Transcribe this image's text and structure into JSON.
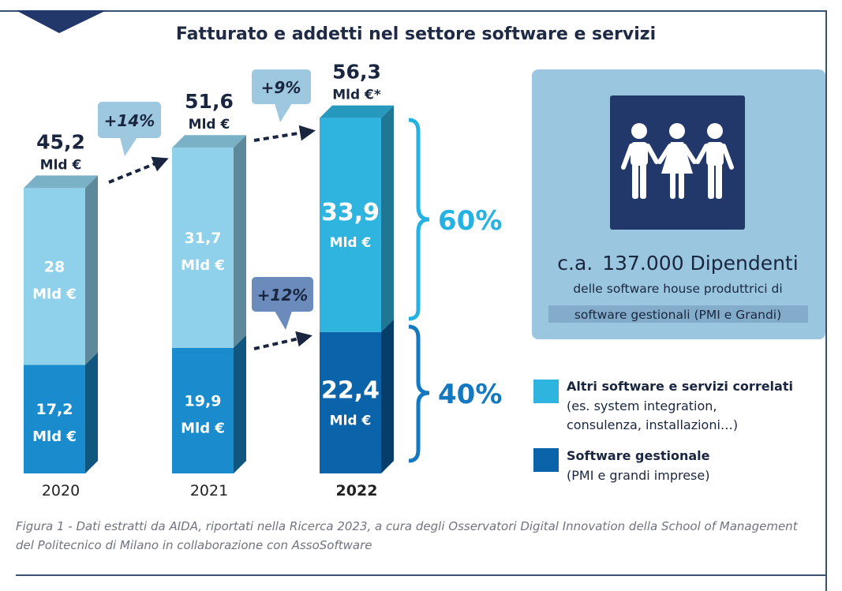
{
  "title": "Fatturato e addetti nel settore software e servizi",
  "colors": {
    "other_light": "#8fd0ea",
    "other_dark": "#2fb4df",
    "gestionale_light": "#1a8ccd",
    "gestionale_dark": "#0b63aa",
    "pct_other": "#25b2e3",
    "pct_gestionale": "#1478c0",
    "employees_box": "#9ac6df",
    "icon_box": "#22386b"
  },
  "chart_data": {
    "type": "bar",
    "stacked": true,
    "categories": [
      "2020",
      "2021",
      "2022"
    ],
    "series": [
      {
        "name": "Software gestionale",
        "values": [
          17.2,
          19.9,
          22.4
        ],
        "labels": [
          "17,2",
          "19,9",
          "22,4"
        ]
      },
      {
        "name": "Altri software e servizi correlati",
        "values": [
          28,
          31.7,
          33.9
        ],
        "labels": [
          "28",
          "31,7",
          "33,9"
        ]
      }
    ],
    "totals": [
      45.2,
      51.6,
      56.3
    ],
    "total_labels": [
      "45,2",
      "51,6",
      "56,3"
    ],
    "total_units": [
      "Mld €",
      "Mld €",
      "Mld €*"
    ],
    "segment_unit": "Mld €",
    "growth": [
      {
        "from": "2020",
        "to": "2021",
        "label": "+14%",
        "series": "total"
      },
      {
        "from": "2021",
        "to": "2022",
        "label": "+9%",
        "series": "total"
      },
      {
        "from": "2021",
        "to": "2022",
        "label": "+12%",
        "series": "Software gestionale"
      }
    ],
    "shares_2022": [
      {
        "series": "Altri software e servizi correlati",
        "label": "60%"
      },
      {
        "series": "Software gestionale",
        "label": "40%"
      }
    ]
  },
  "employees": {
    "count_prefix": "c.a.",
    "count_value": "137.000 Dipendenti",
    "line1": "delle software house produttrici di",
    "line2": "software gestionali (PMI e Grandi)",
    "icon": "people-group-icon"
  },
  "legend": [
    {
      "title": "Altri software e servizi correlati",
      "lines": [
        "(es. system integration,",
        "consulenza, installazioni…)"
      ]
    },
    {
      "title": "Software gestionale",
      "lines": [
        "(PMI e grandi imprese)"
      ]
    }
  ],
  "caption": "Figura 1 -  Dati estratti da AIDA, riportati nella Ricerca 2023, a cura degli Osservatori Digital Innovation della School of Management del Politecnico di Milano in collaborazione con AssoSoftware"
}
